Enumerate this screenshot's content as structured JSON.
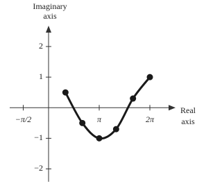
{
  "chart_data": {
    "type": "line",
    "y_axis_label": "Imaginary axis",
    "x_axis_label": "Real axis",
    "x": [
      1.0472,
      2.0944,
      3.1416,
      4.1888,
      5.236,
      6.2832
    ],
    "series": [
      {
        "values": [
          0.5,
          -0.5,
          -1,
          -0.7,
          0.3,
          1
        ],
        "color": "#1a1a1a"
      }
    ],
    "xlim": [
      -2.41,
      7.53
    ],
    "ylim": [
      -2.42,
      2.5
    ],
    "xticks": [
      {
        "value": -1.5708,
        "label": "−π/2"
      },
      {
        "value": 3.1416,
        "label": "π"
      },
      {
        "value": 6.2832,
        "label": "2π"
      }
    ],
    "yticks": [
      {
        "value": 2,
        "label": "2"
      },
      {
        "value": 1,
        "label": "1"
      },
      {
        "value": -1,
        "label": "−1"
      },
      {
        "value": -2,
        "label": "−2"
      }
    ]
  }
}
